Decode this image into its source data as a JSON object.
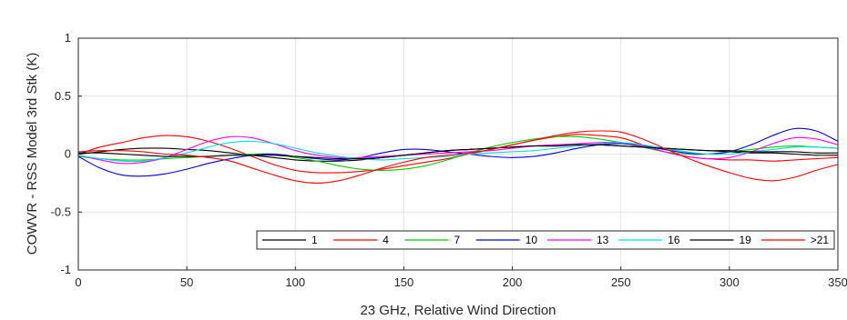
{
  "chart_data": {
    "type": "line",
    "title": "",
    "xlabel": "23 GHz, Relative Wind Direction",
    "ylabel": "COWVR - RSS Model 3rd Stk (K)",
    "xlim": [
      0,
      350
    ],
    "ylim": [
      -1,
      1
    ],
    "xticks": [
      0,
      50,
      100,
      150,
      200,
      250,
      300,
      350
    ],
    "yticks": [
      -1,
      -0.5,
      0,
      0.5,
      1
    ],
    "xtick_labels": [
      "0",
      "50",
      "100",
      "150",
      "200",
      "250",
      "300",
      "350"
    ],
    "ytick_labels": [
      "-1",
      "-0.5",
      "0",
      "0.5",
      "1"
    ],
    "grid": true,
    "legend_position": "bottom-right",
    "x": [
      0,
      10,
      20,
      30,
      40,
      50,
      60,
      70,
      80,
      90,
      100,
      110,
      120,
      130,
      140,
      150,
      160,
      170,
      180,
      190,
      200,
      210,
      220,
      230,
      240,
      250,
      260,
      270,
      280,
      290,
      300,
      310,
      320,
      330,
      340,
      350
    ],
    "series": [
      {
        "name": "1",
        "color": "#000000",
        "values": [
          0.0,
          0.02,
          0.04,
          0.05,
          0.05,
          0.04,
          0.03,
          0.01,
          -0.01,
          -0.03,
          -0.05,
          -0.06,
          -0.06,
          -0.05,
          -0.03,
          -0.01,
          0.01,
          0.03,
          0.04,
          0.05,
          0.06,
          0.07,
          0.08,
          0.08,
          0.08,
          0.07,
          0.06,
          0.05,
          0.04,
          0.03,
          0.02,
          0.01,
          0.01,
          0.0,
          -0.01,
          -0.01
        ]
      },
      {
        "name": "4",
        "color": "#ff0000",
        "values": [
          0.0,
          0.06,
          0.1,
          0.14,
          0.16,
          0.15,
          0.11,
          0.05,
          -0.02,
          -0.09,
          -0.14,
          -0.16,
          -0.16,
          -0.15,
          -0.13,
          -0.1,
          -0.07,
          -0.04,
          0.0,
          0.04,
          0.08,
          0.12,
          0.15,
          0.17,
          0.16,
          0.14,
          0.08,
          0.02,
          -0.02,
          -0.04,
          -0.05,
          -0.05,
          -0.06,
          -0.05,
          -0.04,
          -0.03
        ]
      },
      {
        "name": "7",
        "color": "#00cc00",
        "values": [
          -0.02,
          -0.04,
          -0.05,
          -0.05,
          -0.04,
          -0.03,
          -0.02,
          -0.01,
          0.0,
          0.0,
          -0.03,
          -0.06,
          -0.1,
          -0.13,
          -0.14,
          -0.13,
          -0.1,
          -0.05,
          0.01,
          0.06,
          0.1,
          0.13,
          0.15,
          0.15,
          0.13,
          0.1,
          0.06,
          0.02,
          0.0,
          0.0,
          0.02,
          0.04,
          0.06,
          0.07,
          0.06,
          0.05
        ]
      },
      {
        "name": "10",
        "color": "#0000dd",
        "values": [
          -0.02,
          -0.12,
          -0.18,
          -0.19,
          -0.17,
          -0.13,
          -0.08,
          -0.04,
          -0.01,
          0.0,
          -0.02,
          -0.04,
          -0.05,
          -0.03,
          0.01,
          0.04,
          0.04,
          0.02,
          0.0,
          -0.02,
          -0.03,
          -0.02,
          0.01,
          0.05,
          0.08,
          0.09,
          0.07,
          0.04,
          0.01,
          0.0,
          0.02,
          0.08,
          0.16,
          0.22,
          0.2,
          0.11
        ]
      },
      {
        "name": "13",
        "color": "#ff00ff",
        "values": [
          -0.01,
          -0.05,
          -0.08,
          -0.07,
          -0.03,
          0.04,
          0.11,
          0.15,
          0.14,
          0.09,
          0.03,
          -0.01,
          -0.03,
          -0.03,
          -0.02,
          -0.01,
          0.0,
          0.01,
          0.02,
          0.03,
          0.05,
          0.07,
          0.08,
          0.09,
          0.1,
          0.1,
          0.07,
          0.02,
          -0.02,
          -0.04,
          -0.03,
          0.02,
          0.09,
          0.14,
          0.13,
          0.08
        ]
      },
      {
        "name": "16",
        "color": "#00dddd",
        "values": [
          -0.01,
          -0.04,
          -0.06,
          -0.06,
          -0.03,
          0.01,
          0.06,
          0.1,
          0.11,
          0.09,
          0.05,
          0.01,
          -0.02,
          -0.04,
          -0.05,
          -0.04,
          -0.03,
          -0.02,
          0.0,
          0.01,
          0.02,
          0.03,
          0.05,
          0.07,
          0.09,
          0.1,
          0.08,
          0.05,
          0.02,
          0.0,
          0.0,
          0.02,
          0.04,
          0.06,
          0.06,
          0.05
        ]
      },
      {
        "name": "19",
        "color": "#000000",
        "values": [
          0.01,
          0.01,
          0.0,
          -0.01,
          -0.02,
          -0.02,
          -0.02,
          -0.01,
          -0.01,
          -0.01,
          -0.02,
          -0.03,
          -0.04,
          -0.04,
          -0.03,
          -0.01,
          0.01,
          0.03,
          0.04,
          0.05,
          0.06,
          0.07,
          0.07,
          0.08,
          0.08,
          0.07,
          0.06,
          0.05,
          0.04,
          0.03,
          0.03,
          0.02,
          0.02,
          0.02,
          0.01,
          0.01
        ]
      },
      {
        "name": ">21",
        "color": "#ff0000",
        "values": [
          0.02,
          0.03,
          0.03,
          0.02,
          0.0,
          -0.01,
          -0.03,
          -0.06,
          -0.12,
          -0.18,
          -0.23,
          -0.25,
          -0.23,
          -0.18,
          -0.12,
          -0.07,
          -0.03,
          -0.01,
          0.01,
          0.04,
          0.08,
          0.12,
          0.16,
          0.19,
          0.2,
          0.19,
          0.13,
          0.05,
          -0.03,
          -0.1,
          -0.16,
          -0.21,
          -0.23,
          -0.2,
          -0.14,
          -0.09
        ]
      }
    ]
  }
}
